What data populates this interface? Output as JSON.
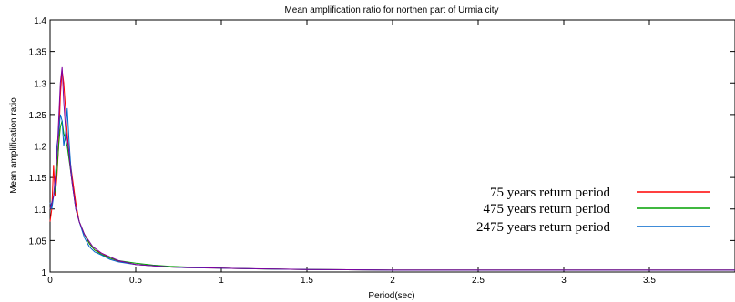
{
  "chart_data": {
    "type": "line",
    "title": "Mean amplification ratio for northen part of Urmia city",
    "xlabel": "Period(sec)",
    "ylabel": "Mean amplification ratio",
    "xlim": [
      0,
      4.0
    ],
    "ylim": [
      1,
      1.4
    ],
    "x_ticks": [
      0,
      0.5,
      1,
      1.5,
      2,
      2.5,
      3,
      3.5
    ],
    "x_tick_labels": [
      "0",
      "0.5",
      "1",
      "1.5",
      "2",
      "2.5",
      "3",
      "3.5"
    ],
    "y_ticks": [
      1,
      1.05,
      1.1,
      1.15,
      1.2,
      1.25,
      1.3,
      1.35,
      1.4
    ],
    "y_tick_labels": [
      "1",
      "1.05",
      "1.1",
      "1.15",
      "1.2",
      "1.25",
      "1.3",
      "1.35",
      "1.4"
    ],
    "legend_position": "lower-right",
    "grid": false,
    "series": [
      {
        "name": "75 years return period",
        "color": "#ff0000",
        "x": [
          0,
          0.01,
          0.02,
          0.03,
          0.04,
          0.05,
          0.06,
          0.07,
          0.08,
          0.09,
          0.1,
          0.11,
          0.12,
          0.13,
          0.15,
          0.17,
          0.2,
          0.23,
          0.26,
          0.3,
          0.35,
          0.4,
          0.5,
          0.6,
          0.7,
          0.8,
          1.0,
          1.2,
          1.5,
          2.0,
          2.5,
          3.0,
          3.5,
          4.0
        ],
        "y": [
          1.08,
          1.1,
          1.17,
          1.12,
          1.15,
          1.2,
          1.28,
          1.32,
          1.3,
          1.26,
          1.22,
          1.19,
          1.17,
          1.15,
          1.11,
          1.08,
          1.06,
          1.045,
          1.035,
          1.03,
          1.022,
          1.017,
          1.012,
          1.01,
          1.008,
          1.007,
          1.006,
          1.005,
          1.004,
          1.003,
          1.003,
          1.003,
          1.003,
          1.003
        ]
      },
      {
        "name": "475 years return period",
        "color": "#00a000",
        "x": [
          0,
          0.01,
          0.02,
          0.03,
          0.04,
          0.05,
          0.06,
          0.07,
          0.08,
          0.09,
          0.1,
          0.11,
          0.12,
          0.13,
          0.15,
          0.17,
          0.2,
          0.23,
          0.26,
          0.3,
          0.35,
          0.4,
          0.5,
          0.6,
          0.7,
          0.8,
          1.0,
          1.2,
          1.5,
          2.0,
          2.5,
          3.0,
          3.5,
          4.0
        ],
        "y": [
          1.1,
          1.11,
          1.12,
          1.13,
          1.16,
          1.2,
          1.23,
          1.24,
          1.22,
          1.21,
          1.2,
          1.18,
          1.16,
          1.14,
          1.1,
          1.08,
          1.06,
          1.045,
          1.035,
          1.028,
          1.022,
          1.018,
          1.014,
          1.011,
          1.009,
          1.008,
          1.006,
          1.005,
          1.004,
          1.003,
          1.003,
          1.003,
          1.003,
          1.003
        ]
      },
      {
        "name": "2475 years return period",
        "color": "#0066cc",
        "x": [
          0,
          0.01,
          0.02,
          0.03,
          0.04,
          0.05,
          0.06,
          0.07,
          0.08,
          0.09,
          0.1,
          0.11,
          0.12,
          0.13,
          0.15,
          0.17,
          0.2,
          0.23,
          0.26,
          0.3,
          0.35,
          0.4,
          0.5,
          0.6,
          0.7,
          0.8,
          1.0,
          1.2,
          1.5,
          2.0,
          2.5,
          3.0,
          3.5,
          4.0
        ],
        "y": [
          1.11,
          1.1,
          1.12,
          1.14,
          1.2,
          1.22,
          1.25,
          1.24,
          1.2,
          1.22,
          1.26,
          1.21,
          1.17,
          1.14,
          1.1,
          1.08,
          1.055,
          1.04,
          1.032,
          1.027,
          1.02,
          1.016,
          1.012,
          1.01,
          1.008,
          1.007,
          1.006,
          1.005,
          1.004,
          1.003,
          1.003,
          1.003,
          1.003,
          1.003
        ]
      },
      {
        "name": "",
        "color": "#8000a0",
        "x": [
          0,
          0.02,
          0.04,
          0.05,
          0.06,
          0.07,
          0.08,
          0.09,
          0.1,
          0.11,
          0.12,
          0.13,
          0.15,
          0.17,
          0.2,
          0.25,
          0.3,
          0.4,
          0.5,
          0.7,
          1.0,
          1.5,
          2.0,
          3.0,
          4.0
        ],
        "y": [
          1.1,
          1.12,
          1.18,
          1.24,
          1.3,
          1.325,
          1.27,
          1.23,
          1.21,
          1.19,
          1.16,
          1.14,
          1.1,
          1.08,
          1.06,
          1.04,
          1.03,
          1.018,
          1.012,
          1.008,
          1.006,
          1.004,
          1.003,
          1.003,
          1.003
        ]
      }
    ]
  }
}
